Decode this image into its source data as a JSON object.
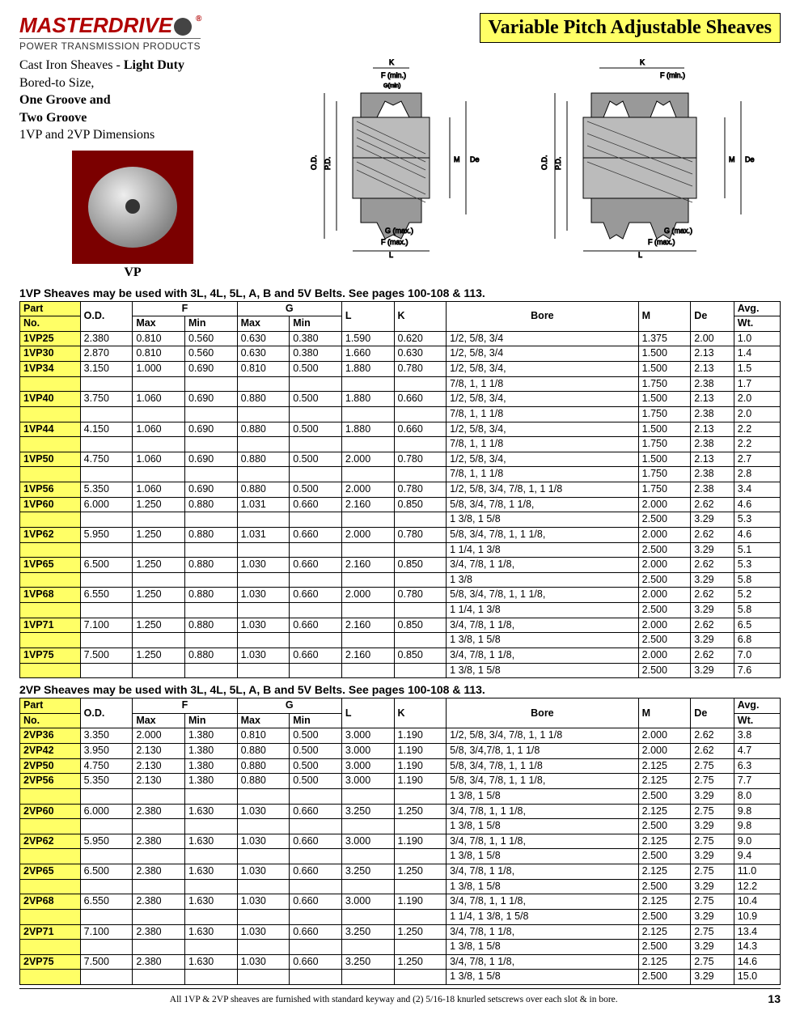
{
  "brand": {
    "name": "MASTERDRIVE",
    "tagline": "POWER TRANSMISSION PRODUCTS"
  },
  "page_title": "Variable Pitch Adjustable Sheaves",
  "intro": {
    "line1a": "Cast Iron Sheaves - ",
    "line1b": "Light Duty",
    "line2": "Bored-to Size,",
    "line3": "One Groove and",
    "line4": "Two Groove",
    "line5": "1VP and 2VP  Dimensions",
    "photo_label": "VP"
  },
  "diagram_labels": {
    "K": "K",
    "Fmin": "F (min.)",
    "Gmin": "G(min)",
    "OD": "O.D.",
    "PD": "P.D.",
    "M": "M",
    "De": "De",
    "Gmax": "G (max.)",
    "Fmax": "F (max.)",
    "L": "L"
  },
  "table1": {
    "note": "1VP Sheaves may be used with 3L, 4L, 5L, A, B and 5V Belts. See pages 100-108 & 113.",
    "headers": {
      "part": "Part",
      "no": "No.",
      "od": "O.D.",
      "F": "F",
      "G": "G",
      "max": "Max",
      "min": "Min",
      "L": "L",
      "K": "K",
      "bore": "Bore",
      "M": "M",
      "De": "De",
      "wt": "Avg.",
      "wt2": "Wt."
    },
    "rows": [
      {
        "part": "1VP25",
        "od": "2.380",
        "fmax": "0.810",
        "fmin": "0.560",
        "gmax": "0.630",
        "gmin": "0.380",
        "l": "1.590",
        "k": "0.620",
        "bore": "1/2, 5/8, 3/4",
        "m": "1.375",
        "de": "2.00",
        "wt": "1.0"
      },
      {
        "part": "1VP30",
        "od": "2.870",
        "fmax": "0.810",
        "fmin": "0.560",
        "gmax": "0.630",
        "gmin": "0.380",
        "l": "1.660",
        "k": "0.630",
        "bore": "1/2, 5/8, 3/4",
        "m": "1.500",
        "de": "2.13",
        "wt": "1.4"
      },
      {
        "part": "1VP34",
        "od": "3.150",
        "fmax": "1.000",
        "fmin": "0.690",
        "gmax": "0.810",
        "gmin": "0.500",
        "l": "1.880",
        "k": "0.780",
        "bore": "1/2, 5/8, 3/4,",
        "m": "1.500",
        "de": "2.13",
        "wt": "1.5"
      },
      {
        "cont": true,
        "bore": "7/8, 1,  1 1/8",
        "m": "1.750",
        "de": "2.38",
        "wt": "1.7"
      },
      {
        "part": "1VP40",
        "od": "3.750",
        "fmax": "1.060",
        "fmin": "0.690",
        "gmax": "0.880",
        "gmin": "0.500",
        "l": "1.880",
        "k": "0.660",
        "bore": "1/2, 5/8, 3/4,",
        "m": "1.500",
        "de": "2.13",
        "wt": "2.0"
      },
      {
        "cont": true,
        "bore": "7/8, 1,  1 1/8",
        "m": "1.750",
        "de": "2.38",
        "wt": "2.0"
      },
      {
        "part": "1VP44",
        "od": "4.150",
        "fmax": "1.060",
        "fmin": "0.690",
        "gmax": "0.880",
        "gmin": "0.500",
        "l": "1.880",
        "k": "0.660",
        "bore": "1/2, 5/8, 3/4,",
        "m": "1.500",
        "de": "2.13",
        "wt": "2.2"
      },
      {
        "cont": true,
        "bore": "7/8, 1,  1 1/8",
        "m": "1.750",
        "de": "2.38",
        "wt": "2.2"
      },
      {
        "part": "1VP50",
        "od": "4.750",
        "fmax": "1.060",
        "fmin": "0.690",
        "gmax": "0.880",
        "gmin": "0.500",
        "l": "2.000",
        "k": "0.780",
        "bore": "1/2, 5/8, 3/4,",
        "m": "1.500",
        "de": "2.13",
        "wt": "2.7"
      },
      {
        "cont": true,
        "bore": "7/8, 1,  1 1/8",
        "m": "1.750",
        "de": "2.38",
        "wt": "2.8"
      },
      {
        "part": "1VP56",
        "od": "5.350",
        "fmax": "1.060",
        "fmin": "0.690",
        "gmax": "0.880",
        "gmin": "0.500",
        "l": "2.000",
        "k": "0.780",
        "bore": "1/2, 5/8, 3/4, 7/8, 1, 1 1/8",
        "m": "1.750",
        "de": "2.38",
        "wt": "3.4"
      },
      {
        "part": "1VP60",
        "od": "6.000",
        "fmax": "1.250",
        "fmin": "0.880",
        "gmax": "1.031",
        "gmin": "0.660",
        "l": "2.160",
        "k": "0.850",
        "bore": "5/8, 3/4, 7/8, 1 1/8,",
        "m": "2.000",
        "de": "2.62",
        "wt": "4.6"
      },
      {
        "cont": true,
        "bore": "1 3/8, 1 5/8",
        "m": "2.500",
        "de": "3.29",
        "wt": "5.3"
      },
      {
        "part": "1VP62",
        "od": "5.950",
        "fmax": "1.250",
        "fmin": "0.880",
        "gmax": "1.031",
        "gmin": "0.660",
        "l": "2.000",
        "k": "0.780",
        "bore": "5/8, 3/4, 7/8, 1, 1 1/8,",
        "m": "2.000",
        "de": "2.62",
        "wt": "4.6"
      },
      {
        "cont": true,
        "bore": "1 1/4, 1 3/8",
        "m": "2.500",
        "de": "3.29",
        "wt": "5.1"
      },
      {
        "part": "1VP65",
        "od": "6.500",
        "fmax": "1.250",
        "fmin": "0.880",
        "gmax": "1.030",
        "gmin": "0.660",
        "l": "2.160",
        "k": "0.850",
        "bore": "3/4, 7/8, 1 1/8,",
        "m": "2.000",
        "de": "2.62",
        "wt": "5.3"
      },
      {
        "cont": true,
        "bore": "1 3/8",
        "m": "2.500",
        "de": "3.29",
        "wt": "5.8"
      },
      {
        "part": "1VP68",
        "od": "6.550",
        "fmax": "1.250",
        "fmin": "0.880",
        "gmax": "1.030",
        "gmin": "0.660",
        "l": "2.000",
        "k": "0.780",
        "bore": "5/8, 3/4, 7/8, 1, 1 1/8,",
        "m": "2.000",
        "de": "2.62",
        "wt": "5.2"
      },
      {
        "cont": true,
        "bore": "1 1/4, 1 3/8",
        "m": "2.500",
        "de": "3.29",
        "wt": "5.8"
      },
      {
        "part": "1VP71",
        "od": "7.100",
        "fmax": "1.250",
        "fmin": "0.880",
        "gmax": "1.030",
        "gmin": "0.660",
        "l": "2.160",
        "k": "0.850",
        "bore": "3/4, 7/8, 1 1/8,",
        "m": "2.000",
        "de": "2.62",
        "wt": "6.5"
      },
      {
        "cont": true,
        "bore": "1 3/8, 1 5/8",
        "m": "2.500",
        "de": "3.29",
        "wt": "6.8"
      },
      {
        "part": "1VP75",
        "od": "7.500",
        "fmax": "1.250",
        "fmin": "0.880",
        "gmax": "1.030",
        "gmin": "0.660",
        "l": "2.160",
        "k": "0.850",
        "bore": "3/4, 7/8, 1 1/8,",
        "m": "2.000",
        "de": "2.62",
        "wt": "7.0"
      },
      {
        "cont": true,
        "bore": "1 3/8, 1 5/8",
        "m": "2.500",
        "de": "3.29",
        "wt": "7.6"
      }
    ]
  },
  "table2": {
    "note": "2VP Sheaves may be used with 3L, 4L, 5L, A, B and 5V Belts. See pages 100-108 & 113.",
    "rows": [
      {
        "part": "2VP36",
        "od": "3.350",
        "fmax": "2.000",
        "fmin": "1.380",
        "gmax": "0.810",
        "gmin": "0.500",
        "l": "3.000",
        "k": "1.190",
        "bore": "1/2, 5/8, 3/4, 7/8, 1, 1 1/8",
        "m": "2.000",
        "de": "2.62",
        "wt": "3.8"
      },
      {
        "part": "2VP42",
        "od": "3.950",
        "fmax": "2.130",
        "fmin": "1.380",
        "gmax": "0.880",
        "gmin": "0.500",
        "l": "3.000",
        "k": "1.190",
        "bore": "5/8,  3/4,7/8, 1, 1 1/8",
        "m": "2.000",
        "de": "2.62",
        "wt": "4.7"
      },
      {
        "part": "2VP50",
        "od": "4.750",
        "fmax": "2.130",
        "fmin": "1.380",
        "gmax": "0.880",
        "gmin": "0.500",
        "l": "3.000",
        "k": "1.190",
        "bore": "5/8, 3/4, 7/8, 1, 1 1/8",
        "m": "2.125",
        "de": "2.75",
        "wt": "6.3"
      },
      {
        "part": "2VP56",
        "od": "5.350",
        "fmax": "2.130",
        "fmin": "1.380",
        "gmax": "0.880",
        "gmin": "0.500",
        "l": "3.000",
        "k": "1.190",
        "bore": "5/8, 3/4, 7/8, 1, 1 1/8,",
        "m": "2.125",
        "de": "2.75",
        "wt": "7.7"
      },
      {
        "cont": true,
        "bore": "1 3/8, 1 5/8",
        "m": "2.500",
        "de": "3.29",
        "wt": "8.0"
      },
      {
        "part": "2VP60",
        "od": "6.000",
        "fmax": "2.380",
        "fmin": "1.630",
        "gmax": "1.030",
        "gmin": "0.660",
        "l": "3.250",
        "k": "1.250",
        "bore": "3/4, 7/8, 1, 1 1/8,",
        "m": "2.125",
        "de": "2.75",
        "wt": "9.8"
      },
      {
        "cont": true,
        "bore": "1 3/8, 1 5/8",
        "m": "2.500",
        "de": "3.29",
        "wt": "9.8"
      },
      {
        "part": "2VP62",
        "od": "5.950",
        "fmax": "2.380",
        "fmin": "1.630",
        "gmax": "1.030",
        "gmin": "0.660",
        "l": "3.000",
        "k": "1.190",
        "bore": "3/4, 7/8, 1, 1 1/8,",
        "m": "2.125",
        "de": "2.75",
        "wt": "9.0"
      },
      {
        "cont": true,
        "bore": "1 3/8, 1 5/8",
        "m": "2.500",
        "de": "3.29",
        "wt": "9.4"
      },
      {
        "part": "2VP65",
        "od": "6.500",
        "fmax": "2.380",
        "fmin": "1.630",
        "gmax": "1.030",
        "gmin": "0.660",
        "l": "3.250",
        "k": "1.250",
        "bore": "3/4, 7/8, 1 1/8,",
        "m": "2.125",
        "de": "2.75",
        "wt": "11.0"
      },
      {
        "cont": true,
        "bore": "1 3/8, 1 5/8",
        "m": "2.500",
        "de": "3.29",
        "wt": "12.2"
      },
      {
        "part": "2VP68",
        "od": "6.550",
        "fmax": "2.380",
        "fmin": "1.630",
        "gmax": "1.030",
        "gmin": "0.660",
        "l": "3.000",
        "k": "1.190",
        "bore": "3/4, 7/8, 1, 1 1/8,",
        "m": "2.125",
        "de": "2.75",
        "wt": "10.4"
      },
      {
        "cont": true,
        "bore": "1 1/4, 1 3/8, 1 5/8",
        "m": "2.500",
        "de": "3.29",
        "wt": "10.9"
      },
      {
        "part": "2VP71",
        "od": "7.100",
        "fmax": "2.380",
        "fmin": "1.630",
        "gmax": "1.030",
        "gmin": "0.660",
        "l": "3.250",
        "k": "1.250",
        "bore": "3/4, 7/8, 1 1/8,",
        "m": "2.125",
        "de": "2.75",
        "wt": "13.4"
      },
      {
        "cont": true,
        "bore": "1 3/8, 1 5/8",
        "m": "2.500",
        "de": "3.29",
        "wt": "14.3"
      },
      {
        "part": "2VP75",
        "od": "7.500",
        "fmax": "2.380",
        "fmin": "1.630",
        "gmax": "1.030",
        "gmin": "0.660",
        "l": "3.250",
        "k": "1.250",
        "bore": "3/4, 7/8, 1 1/8,",
        "m": "2.125",
        "de": "2.75",
        "wt": "14.6"
      },
      {
        "cont": true,
        "bore": "1 3/8, 1 5/8",
        "m": "2.500",
        "de": "3.29",
        "wt": "15.0"
      }
    ]
  },
  "footer": "All 1VP & 2VP sheaves are furnished with standard keyway and (2) 5/16-18 knurled setscrews over each slot & in bore.",
  "page_number": "13"
}
